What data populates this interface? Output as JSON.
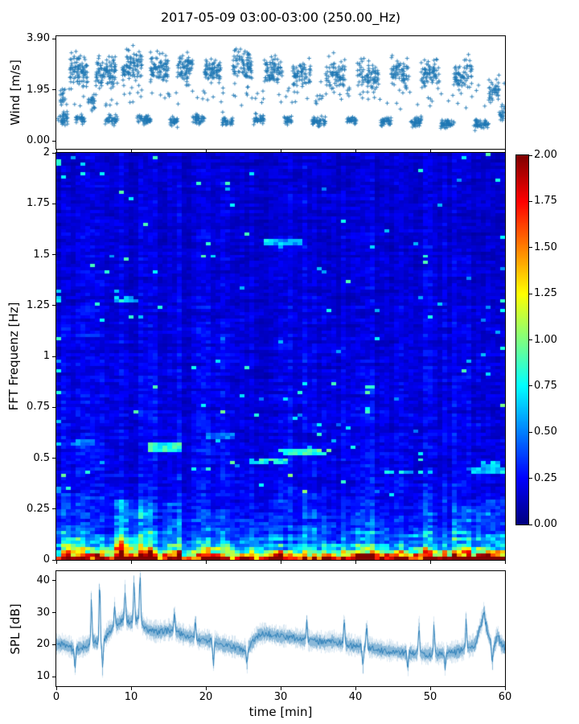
{
  "title": "2017-05-09 03:00-03:00 (250.00_Hz)",
  "colors": {
    "series": "#1f77b4",
    "axis": "#000000",
    "background": "#ffffff"
  },
  "chart_data": [
    {
      "name": "wind-scatter",
      "type": "scatter",
      "ylabel": "Wind [m/s]",
      "marker": "+",
      "color": "#1f77b4",
      "xlim": [
        0,
        60
      ],
      "ylim": [
        0,
        3.9
      ],
      "ylim_display": [
        -0.3,
        4.0
      ],
      "yticks": {
        "values": [
          0,
          1.95,
          3.9
        ],
        "labels": [
          "0.00",
          "1.95",
          "3.90"
        ]
      },
      "xticks": {
        "values": [
          0,
          10,
          20,
          30,
          40,
          50,
          60
        ],
        "labels": []
      },
      "clusters": [
        [
          0.2,
          1.5,
          0.4,
          1.2,
          35
        ],
        [
          0.5,
          1.2,
          1.0,
          2.2,
          15
        ],
        [
          1.8,
          4.2,
          1.6,
          3.5,
          90
        ],
        [
          2.6,
          3.8,
          0.5,
          1.1,
          30
        ],
        [
          4.3,
          5.2,
          0.8,
          2.0,
          20
        ],
        [
          5.3,
          8.0,
          1.5,
          3.5,
          95
        ],
        [
          6.5,
          8.3,
          0.5,
          1.1,
          35
        ],
        [
          8.8,
          11.5,
          1.6,
          3.8,
          90
        ],
        [
          10.8,
          12.6,
          0.5,
          1.1,
          45
        ],
        [
          12.6,
          15.0,
          1.7,
          3.6,
          85
        ],
        [
          15.2,
          16.2,
          0.4,
          1.0,
          30
        ],
        [
          16.2,
          18.2,
          1.8,
          3.5,
          70
        ],
        [
          18.2,
          19.8,
          0.5,
          1.1,
          40
        ],
        [
          19.8,
          22.0,
          1.7,
          3.4,
          75
        ],
        [
          22.2,
          23.6,
          0.4,
          1.0,
          30
        ],
        [
          23.6,
          26.2,
          1.6,
          3.85,
          85
        ],
        [
          26.4,
          27.8,
          0.5,
          1.1,
          35
        ],
        [
          27.8,
          30.2,
          1.6,
          3.5,
          80
        ],
        [
          30.4,
          31.6,
          0.5,
          1.0,
          25
        ],
        [
          31.6,
          34.0,
          1.5,
          3.3,
          70
        ],
        [
          34.2,
          36.0,
          0.4,
          1.0,
          45
        ],
        [
          36.0,
          38.6,
          1.5,
          3.4,
          75
        ],
        [
          38.8,
          40.2,
          0.5,
          1.0,
          30
        ],
        [
          40.2,
          43.2,
          1.4,
          3.3,
          80
        ],
        [
          43.4,
          44.8,
          0.4,
          1.0,
          35
        ],
        [
          44.8,
          47.2,
          1.5,
          3.4,
          70
        ],
        [
          47.4,
          48.8,
          0.4,
          1.0,
          40
        ],
        [
          48.8,
          51.2,
          1.5,
          3.3,
          70
        ],
        [
          51.4,
          53.2,
          0.3,
          0.9,
          45
        ],
        [
          53.2,
          55.6,
          1.4,
          3.4,
          70
        ],
        [
          55.8,
          57.8,
          0.3,
          0.9,
          50
        ],
        [
          57.8,
          59.2,
          1.0,
          2.6,
          40
        ],
        [
          59.2,
          60.0,
          0.5,
          1.5,
          20
        ],
        [
          0.0,
          60.0,
          0.8,
          2.4,
          120
        ]
      ]
    },
    {
      "name": "fft-spectrogram",
      "type": "heatmap",
      "ylabel": "FFT Frequenz [Hz]",
      "colormap": "jet",
      "xlim": [
        0,
        60
      ],
      "ylim": [
        0,
        2
      ],
      "clim": [
        0,
        2
      ],
      "yticks": {
        "values": [
          0,
          0.25,
          0.5,
          0.75,
          1,
          1.25,
          1.5,
          1.75,
          2
        ],
        "labels": [
          "0",
          "0.25",
          "0.5",
          "0.75",
          "1",
          "1.25",
          "1.5",
          "1.75",
          "2"
        ]
      },
      "xticks": {
        "values": [
          0,
          10,
          20,
          30,
          40,
          50,
          60
        ],
        "labels": []
      },
      "grid": {
        "nt": 93,
        "nf": 128
      },
      "freq_profile": [
        [
          0,
          2.15
        ],
        [
          0.015,
          1.9
        ],
        [
          0.03,
          1.25
        ],
        [
          0.05,
          0.85
        ],
        [
          0.08,
          0.6
        ],
        [
          0.12,
          0.45
        ],
        [
          0.18,
          0.36
        ],
        [
          0.25,
          0.3
        ],
        [
          0.4,
          0.26
        ],
        [
          0.6,
          0.24
        ],
        [
          1.0,
          0.22
        ],
        [
          1.4,
          0.2
        ],
        [
          2.0,
          0.19
        ]
      ],
      "time_bursts": [
        [
          0,
          4,
          1.25
        ],
        [
          7.5,
          13,
          1.65
        ],
        [
          14.5,
          17,
          1.25
        ],
        [
          20,
          22,
          1.1
        ],
        [
          26.5,
          30,
          1.15
        ],
        [
          33,
          36,
          1.1
        ],
        [
          40,
          43,
          1.2
        ],
        [
          47.5,
          50.5,
          1.3
        ],
        [
          53,
          60,
          1.35
        ]
      ],
      "features": [
        {
          "t": [
            12.5,
            17
          ],
          "f": [
            0.53,
            0.575
          ],
          "v": 0.85
        },
        {
          "t": [
            26,
            31
          ],
          "f": [
            0.475,
            0.505
          ],
          "v": 0.8
        },
        {
          "t": [
            30,
            37
          ],
          "f": [
            0.515,
            0.545
          ],
          "v": 0.85
        },
        {
          "t": [
            44,
            50.5
          ],
          "f": [
            0.415,
            0.445
          ],
          "v": 0.7
        },
        {
          "t": [
            7.5,
            11
          ],
          "f": [
            1.265,
            1.295
          ],
          "v": 0.7
        },
        {
          "t": [
            28,
            33
          ],
          "f": [
            1.545,
            1.575
          ],
          "v": 0.6
        },
        {
          "t": [
            57,
            60
          ],
          "f": [
            0.46,
            0.49
          ],
          "v": 0.75
        },
        {
          "t": [
            55,
            60
          ],
          "f": [
            0.42,
            0.45
          ],
          "v": 0.6
        },
        {
          "t": [
            2,
            5
          ],
          "f": [
            0.56,
            0.59
          ],
          "v": 0.55
        },
        {
          "t": [
            20,
            24
          ],
          "f": [
            0.6,
            0.625
          ],
          "v": 0.5
        }
      ],
      "noise": {
        "speckle_prob": 0.013,
        "speckle_add": [
          0.3,
          0.45
        ]
      }
    },
    {
      "name": "colorbar",
      "type": "colorbar",
      "colormap": "jet",
      "lim": [
        0,
        2
      ],
      "ticks": {
        "values": [
          0,
          0.25,
          0.5,
          0.75,
          1,
          1.25,
          1.5,
          1.75,
          2
        ],
        "labels": [
          "0.00",
          "0.25",
          "0.50",
          "0.75",
          "1.00",
          "1.25",
          "1.50",
          "1.75",
          "2.00"
        ]
      }
    },
    {
      "name": "spl-line",
      "type": "line",
      "ylabel": "SPL [dB]",
      "xlabel": "time [min]",
      "color": "#1f77b4",
      "xlim": [
        0,
        60
      ],
      "ylim": [
        10,
        40
      ],
      "ylim_display": [
        7,
        43
      ],
      "yticks": {
        "values": [
          10,
          20,
          30,
          40
        ],
        "labels": [
          "10",
          "20",
          "30",
          "40"
        ]
      },
      "xticks": {
        "values": [
          0,
          10,
          20,
          30,
          40,
          50,
          60
        ],
        "labels": [
          "0",
          "10",
          "20",
          "30",
          "40",
          "50",
          "60"
        ]
      },
      "mean_points": [
        [
          0,
          20
        ],
        [
          1,
          20
        ],
        [
          2.5,
          18.5
        ],
        [
          4,
          19.5
        ],
        [
          5,
          21
        ],
        [
          6,
          20
        ],
        [
          7,
          24
        ],
        [
          8,
          26
        ],
        [
          9,
          28
        ],
        [
          10,
          27
        ],
        [
          11,
          28
        ],
        [
          12,
          25
        ],
        [
          13,
          24
        ],
        [
          14,
          24
        ],
        [
          15,
          24.5
        ],
        [
          16,
          24
        ],
        [
          17,
          23
        ],
        [
          18,
          22.5
        ],
        [
          19,
          21.5
        ],
        [
          20,
          21.5
        ],
        [
          21,
          21
        ],
        [
          22,
          20
        ],
        [
          23,
          19.5
        ],
        [
          24,
          19
        ],
        [
          25,
          18
        ],
        [
          26,
          20
        ],
        [
          27,
          23
        ],
        [
          28,
          23.5
        ],
        [
          29,
          23
        ],
        [
          30,
          22.5
        ],
        [
          31,
          22.5
        ],
        [
          32,
          22
        ],
        [
          33,
          21.5
        ],
        [
          34,
          21
        ],
        [
          35,
          21
        ],
        [
          36,
          20.5
        ],
        [
          37,
          21
        ],
        [
          38,
          20.5
        ],
        [
          39,
          20
        ],
        [
          40,
          19.5
        ],
        [
          41,
          19.5
        ],
        [
          42,
          19
        ],
        [
          43,
          18.5
        ],
        [
          44,
          18
        ],
        [
          45,
          18
        ],
        [
          46,
          17.5
        ],
        [
          47,
          17.5
        ],
        [
          48,
          17
        ],
        [
          49,
          17
        ],
        [
          50,
          17
        ],
        [
          51,
          17
        ],
        [
          52,
          17.5
        ],
        [
          53,
          17.5
        ],
        [
          54,
          18
        ],
        [
          55,
          19
        ],
        [
          56,
          20
        ],
        [
          57,
          28
        ],
        [
          57.5,
          26
        ],
        [
          58,
          21
        ],
        [
          58.5,
          19
        ],
        [
          59,
          23
        ],
        [
          59.5,
          20
        ],
        [
          60,
          19
        ]
      ],
      "spikes": [
        [
          4.7,
          35
        ],
        [
          5.8,
          40
        ],
        [
          7.8,
          32
        ],
        [
          9.2,
          37
        ],
        [
          10.4,
          40
        ],
        [
          11.2,
          42
        ],
        [
          15.8,
          30
        ],
        [
          18.6,
          28
        ],
        [
          33.5,
          27
        ],
        [
          38.5,
          28
        ],
        [
          41.5,
          26
        ],
        [
          48.5,
          27
        ],
        [
          50.5,
          26
        ],
        [
          54.8,
          28
        ],
        [
          57.2,
          31
        ]
      ],
      "dips": [
        [
          2.5,
          13
        ],
        [
          6.2,
          12
        ],
        [
          21,
          14
        ],
        [
          25.5,
          13.5
        ],
        [
          41,
          13
        ],
        [
          47,
          12.5
        ],
        [
          52,
          13
        ],
        [
          58.3,
          14
        ]
      ],
      "noise": {
        "wide": 2.9,
        "mid": 1.7,
        "core": 1.0
      }
    }
  ]
}
